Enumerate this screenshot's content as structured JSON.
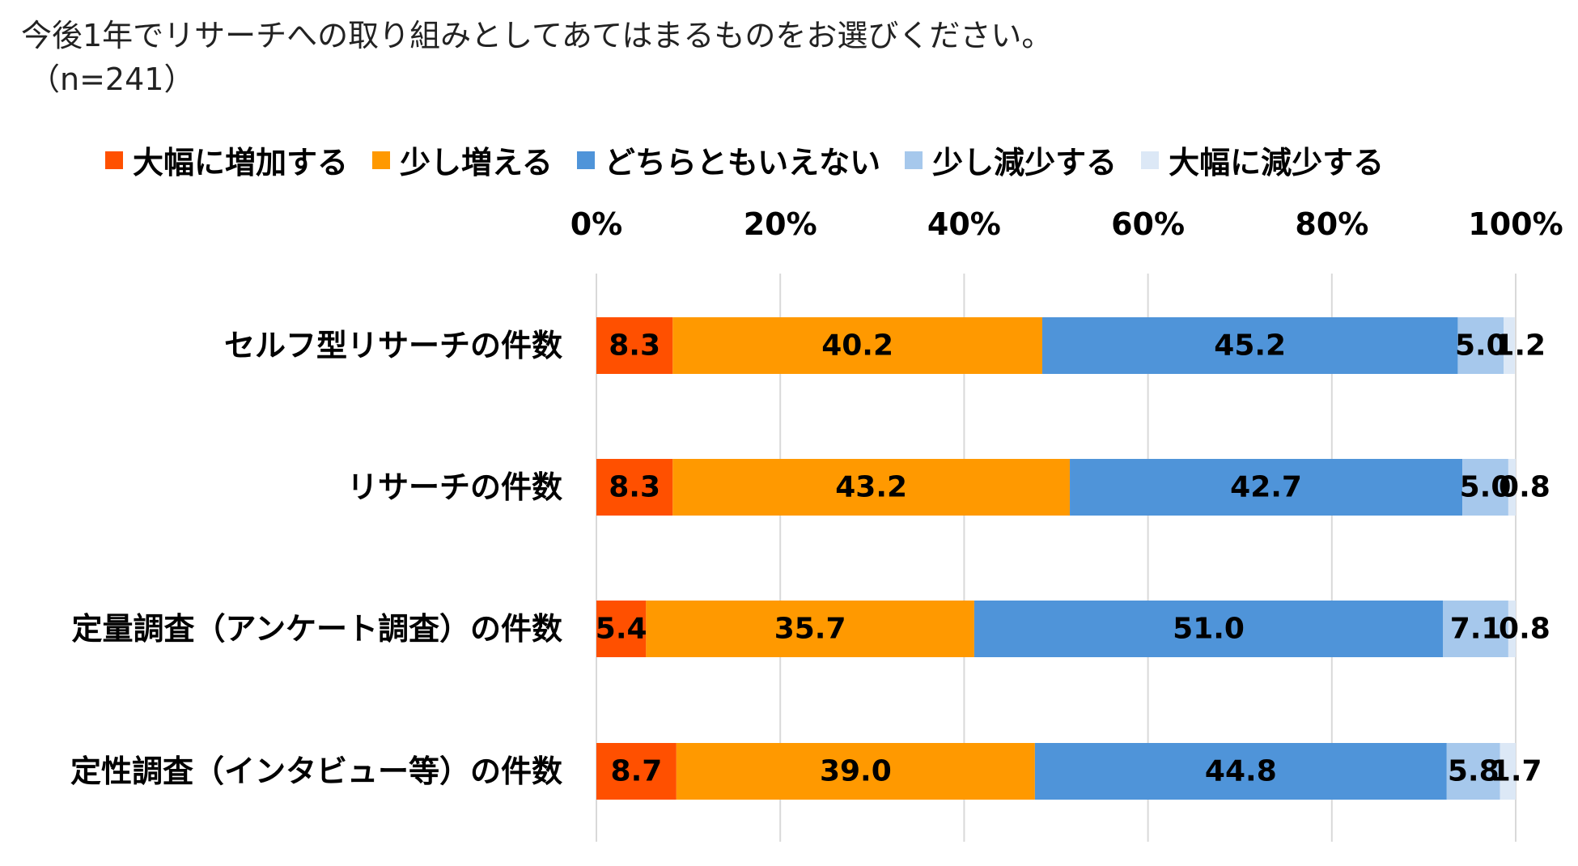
{
  "header": {
    "title": "今後1年でリサーチへの取り組みとしてあてはまるものをお選びください。",
    "subtitle": "（n=241）"
  },
  "legend": {
    "items": [
      {
        "label": "大幅に増加する",
        "color": "#FF5000"
      },
      {
        "label": "少し増える",
        "color": "#FF9900"
      },
      {
        "label": "どちらともいえない",
        "color": "#4F94D9"
      },
      {
        "label": "少し減少する",
        "color": "#A6C8EC"
      },
      {
        "label": "大幅に減少する",
        "color": "#DCE8F6"
      }
    ]
  },
  "chart_data": {
    "type": "bar",
    "orientation": "horizontal",
    "stacked": true,
    "percent_stacked": true,
    "title": "今後1年でリサーチへの取り組みとしてあてはまるものをお選びください。",
    "subtitle": "（n=241）",
    "categories": [
      "セルフ型リサーチの件数",
      "リサーチの件数",
      "定量調査（アンケート調査）の件数",
      "定性調査（インタビュー等）の件数"
    ],
    "series": [
      {
        "name": "大幅に増加する",
        "color": "#FF5000",
        "values": [
          8.3,
          8.3,
          5.4,
          8.7
        ]
      },
      {
        "name": "少し増える",
        "color": "#FF9900",
        "values": [
          40.2,
          43.2,
          35.7,
          39.0
        ]
      },
      {
        "name": "どちらともいえない",
        "color": "#4F94D9",
        "values": [
          45.2,
          42.7,
          51.0,
          44.8
        ]
      },
      {
        "name": "少し減少する",
        "color": "#A6C8EC",
        "values": [
          5.0,
          5.0,
          7.1,
          5.8
        ]
      },
      {
        "name": "大幅に減少する",
        "color": "#DCE8F6",
        "values": [
          1.2,
          0.8,
          0.8,
          1.7
        ]
      }
    ],
    "xlim": [
      0,
      100
    ],
    "xticks": [
      "0%",
      "20%",
      "40%",
      "60%",
      "80%",
      "100%"
    ],
    "grid": true,
    "legend_position": "top",
    "xaxis_position": "top",
    "value_label_decimals": 1
  }
}
